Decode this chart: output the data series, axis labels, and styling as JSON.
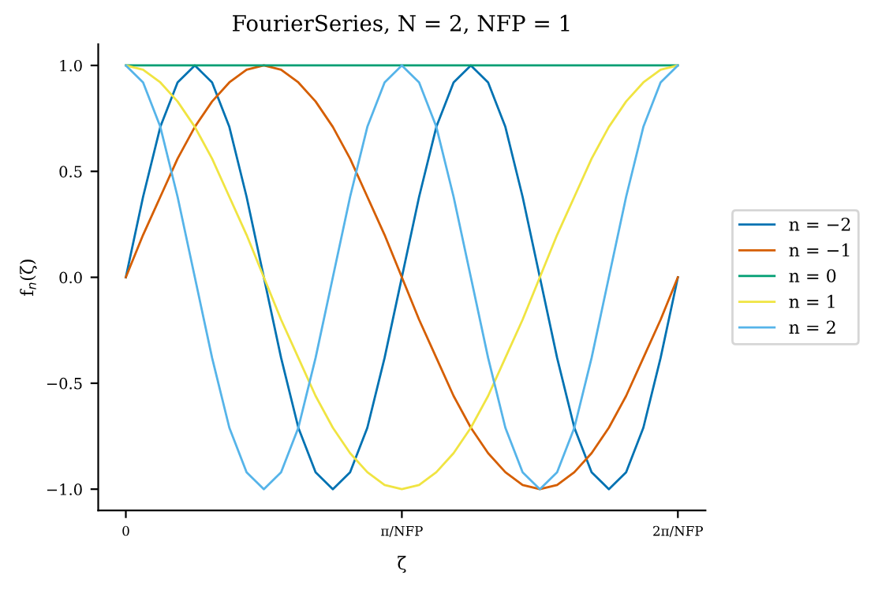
{
  "chart_data": {
    "type": "line",
    "title": "FourierSeries, N = 2, NFP = 1",
    "xlabel": "ζ",
    "ylabel": "f$_{n}$(ζ)",
    "x": [
      0,
      0.0625,
      0.125,
      0.1875,
      0.25,
      0.3125,
      0.375,
      0.4375,
      0.5,
      0.5625,
      0.625,
      0.6875,
      0.75,
      0.8125,
      0.875,
      0.9375,
      1,
      1.0625,
      1.125,
      1.1875,
      1.25,
      1.3125,
      1.375,
      1.4375,
      1.5,
      1.5625,
      1.625,
      1.6875,
      1.75,
      1.8125,
      1.875,
      1.9375,
      2
    ],
    "series": [
      {
        "name": "n = −2",
        "color": "#0072b2",
        "values": [
          0,
          0.38,
          0.71,
          0.92,
          1,
          0.92,
          0.71,
          0.38,
          0,
          -0.38,
          -0.71,
          -0.92,
          -1,
          -0.92,
          -0.71,
          -0.38,
          0,
          0.38,
          0.71,
          0.92,
          1,
          0.92,
          0.71,
          0.38,
          0,
          -0.38,
          -0.71,
          -0.92,
          -1,
          -0.92,
          -0.71,
          -0.38,
          0
        ]
      },
      {
        "name": "n = −1",
        "color": "#d55e00",
        "values": [
          0,
          0.2,
          0.38,
          0.56,
          0.71,
          0.83,
          0.92,
          0.98,
          1,
          0.98,
          0.92,
          0.83,
          0.71,
          0.56,
          0.38,
          0.2,
          0,
          -0.2,
          -0.38,
          -0.56,
          -0.71,
          -0.83,
          -0.92,
          -0.98,
          -1,
          -0.98,
          -0.92,
          -0.83,
          -0.71,
          -0.56,
          -0.38,
          -0.2,
          0
        ]
      },
      {
        "name": "n = 0",
        "color": "#009e73",
        "values": [
          1,
          1,
          1,
          1,
          1,
          1,
          1,
          1,
          1,
          1,
          1,
          1,
          1,
          1,
          1,
          1,
          1,
          1,
          1,
          1,
          1,
          1,
          1,
          1,
          1,
          1,
          1,
          1,
          1,
          1,
          1,
          1,
          1
        ]
      },
      {
        "name": "n = 1",
        "color": "#f0e442",
        "values": [
          1,
          0.98,
          0.92,
          0.83,
          0.71,
          0.56,
          0.38,
          0.2,
          0,
          -0.2,
          -0.38,
          -0.56,
          -0.71,
          -0.83,
          -0.92,
          -0.98,
          -1,
          -0.98,
          -0.92,
          -0.83,
          -0.71,
          -0.56,
          -0.38,
          -0.2,
          0,
          0.2,
          0.38,
          0.56,
          0.71,
          0.83,
          0.92,
          0.98,
          1
        ]
      },
      {
        "name": "n = 2",
        "color": "#56b4e9",
        "values": [
          1,
          0.92,
          0.71,
          0.38,
          0,
          -0.38,
          -0.71,
          -0.92,
          -1,
          -0.92,
          -0.71,
          -0.38,
          0,
          0.38,
          0.71,
          0.92,
          1,
          0.92,
          0.71,
          0.38,
          0,
          -0.38,
          -0.71,
          -0.92,
          -1,
          -0.92,
          -0.71,
          -0.38,
          0,
          0.38,
          0.71,
          0.92,
          1
        ]
      }
    ],
    "xlim": [
      -0.1,
      2.1
    ],
    "xticks": [
      0,
      {
        "value": 1,
        "label": "π/NFP"
      },
      {
        "value": 2,
        "label": "2π/NFP"
      }
    ],
    "ylim": [
      -1.1,
      1.1
    ],
    "yticks": [
      {
        "value": -1,
        "label": "−1.0"
      },
      {
        "value": -0.5,
        "label": "−0.5"
      },
      {
        "value": 0,
        "label": "0.0"
      },
      {
        "value": 0.5,
        "label": "0.5"
      },
      {
        "value": 1,
        "label": "1.0"
      }
    ],
    "legend": "right",
    "grid": false,
    "marker": "none",
    "line_style": "solid"
  }
}
